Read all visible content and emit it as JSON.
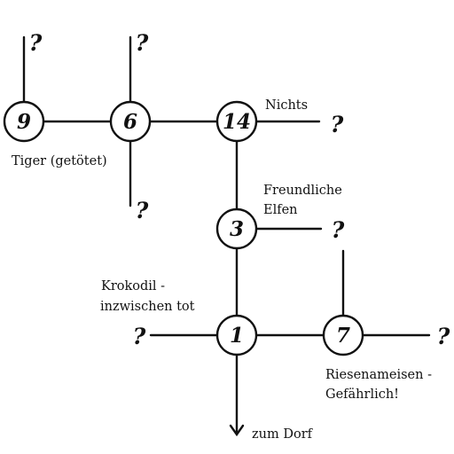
{
  "nodes": {
    "n9": "9",
    "n6": "6",
    "n14": "14",
    "n3": "3",
    "n1": "1",
    "n7": "7"
  },
  "unknown_mark": "?",
  "labels": {
    "tiger": "Tiger (getötet)",
    "nichts": "Nichts",
    "elfen_line1": "Freundliche",
    "elfen_line2": "Elfen",
    "krokodil_line1": "Krokodil -",
    "krokodil_line2": "inzwischen tot",
    "ameisen_line1": "Riesenameisen -",
    "ameisen_line2": "Gefährlich!",
    "dorf": "zum Dorf"
  }
}
